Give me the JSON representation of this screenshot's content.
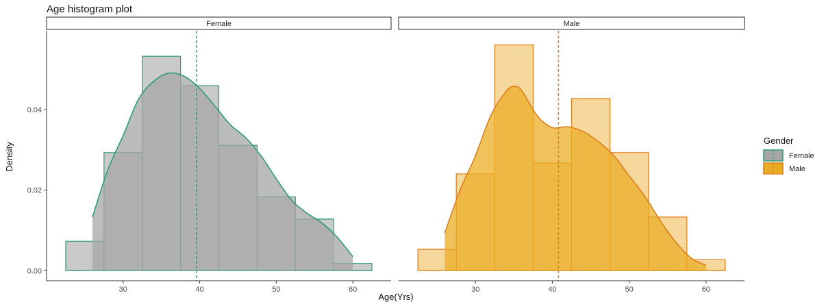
{
  "chart_data": {
    "type": "bar",
    "subtype": "faceted histogram with density overlay and mean line",
    "title": "Age histogram plot",
    "xlabel": "Age(Yrs)",
    "ylabel": "Density",
    "xlim": [
      20,
      65
    ],
    "ylim": [
      -0.0025,
      0.0595
    ],
    "x_ticks": [
      30,
      40,
      50,
      60
    ],
    "y_ticks": [
      0.0,
      0.02,
      0.04
    ],
    "y_tick_labels": [
      "0.00",
      "0.02",
      "0.04"
    ],
    "grid": false,
    "bin_width": 5,
    "legend": {
      "title": "Gender",
      "position": "right",
      "items": [
        "Female",
        "Male"
      ]
    },
    "colors": {
      "female_fill": "#b3b3b3",
      "female_line": "#2a9d78",
      "female_density_fill": "#a6a6a6",
      "male_fill": "#f2c772",
      "male_line": "#e07d1a",
      "male_density_fill": "#e9ad25"
    },
    "facets": [
      {
        "label": "Female",
        "mean": 39.6,
        "bins": [
          {
            "x0": 22.5,
            "x1": 27.5,
            "density": 0.0073
          },
          {
            "x0": 27.5,
            "x1": 32.5,
            "density": 0.0293
          },
          {
            "x0": 32.5,
            "x1": 37.5,
            "density": 0.0532
          },
          {
            "x0": 37.5,
            "x1": 42.5,
            "density": 0.0459
          },
          {
            "x0": 42.5,
            "x1": 47.5,
            "density": 0.0311
          },
          {
            "x0": 47.5,
            "x1": 52.5,
            "density": 0.0183
          },
          {
            "x0": 52.5,
            "x1": 57.5,
            "density": 0.0128
          },
          {
            "x0": 57.5,
            "x1": 62.5,
            "density": 0.0018
          }
        ],
        "density_curve": {
          "x": [
            26,
            28,
            30,
            32,
            34,
            36,
            38,
            40,
            42,
            44,
            46,
            48,
            50,
            52,
            54,
            56,
            58,
            60
          ],
          "y": [
            0.0133,
            0.025,
            0.0335,
            0.0425,
            0.047,
            0.049,
            0.0482,
            0.0452,
            0.0408,
            0.0362,
            0.033,
            0.0285,
            0.0228,
            0.0175,
            0.0143,
            0.0118,
            0.0082,
            0.0035
          ]
        }
      },
      {
        "label": "Male",
        "mean": 40.8,
        "bins": [
          {
            "x0": 22.5,
            "x1": 27.5,
            "density": 0.0053
          },
          {
            "x0": 27.5,
            "x1": 32.5,
            "density": 0.024
          },
          {
            "x0": 32.5,
            "x1": 37.5,
            "density": 0.056
          },
          {
            "x0": 37.5,
            "x1": 42.5,
            "density": 0.0267
          },
          {
            "x0": 42.5,
            "x1": 47.5,
            "density": 0.0427
          },
          {
            "x0": 47.5,
            "x1": 52.5,
            "density": 0.0293
          },
          {
            "x0": 52.5,
            "x1": 57.5,
            "density": 0.0133
          },
          {
            "x0": 57.5,
            "x1": 62.5,
            "density": 0.0027
          }
        ],
        "density_curve": {
          "x": [
            26,
            28,
            30,
            32,
            34,
            35,
            36,
            38,
            40,
            42,
            44,
            46,
            48,
            50,
            52,
            54,
            56,
            58,
            60
          ],
          "y": [
            0.0093,
            0.02,
            0.0285,
            0.0385,
            0.0445,
            0.0457,
            0.0447,
            0.0385,
            0.0355,
            0.0357,
            0.0345,
            0.032,
            0.0285,
            0.0235,
            0.0185,
            0.0125,
            0.0072,
            0.0032,
            0.0013
          ]
        }
      }
    ]
  }
}
